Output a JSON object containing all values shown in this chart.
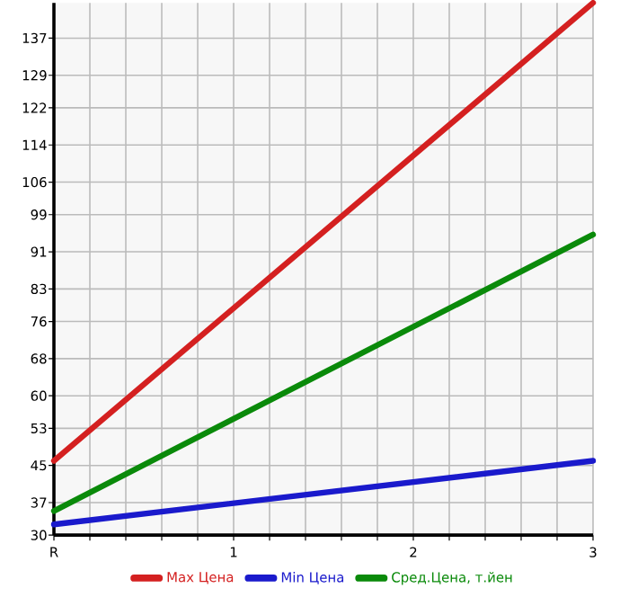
{
  "chart_data": {
    "type": "line",
    "x": [
      0,
      3
    ],
    "series": [
      {
        "name": "Max Цена",
        "color": "#d42020",
        "values": [
          46,
          144.6
        ]
      },
      {
        "name": "Min Цена",
        "color": "#1a1acc",
        "values": [
          32.3,
          46
        ]
      },
      {
        "name": "Сред.Цена, т.йен",
        "color": "#0a8a0a",
        "values": [
          35.2,
          94.7
        ]
      }
    ],
    "xlim": [
      0,
      3
    ],
    "xticks": [
      {
        "value": 0,
        "label": "R"
      },
      {
        "value": 0.2,
        "label": null
      },
      {
        "value": 0.4,
        "label": null
      },
      {
        "value": 0.6,
        "label": null
      },
      {
        "value": 0.8,
        "label": null
      },
      1,
      {
        "value": 1.2,
        "label": null
      },
      {
        "value": 1.4,
        "label": null
      },
      {
        "value": 1.6,
        "label": null
      },
      {
        "value": 1.8,
        "label": null
      },
      2,
      {
        "value": 2.2,
        "label": null
      },
      {
        "value": 2.4,
        "label": null
      },
      {
        "value": 2.6,
        "label": null
      },
      {
        "value": 2.8,
        "label": null
      },
      3
    ],
    "ylim": [
      30,
      144.6
    ],
    "yticks": [
      30,
      37,
      45,
      53,
      60,
      68,
      76,
      83,
      91,
      99,
      106,
      114,
      122,
      129,
      137
    ],
    "grid": true,
    "legend": "bottom",
    "marker": "none",
    "line_style": "solid"
  }
}
